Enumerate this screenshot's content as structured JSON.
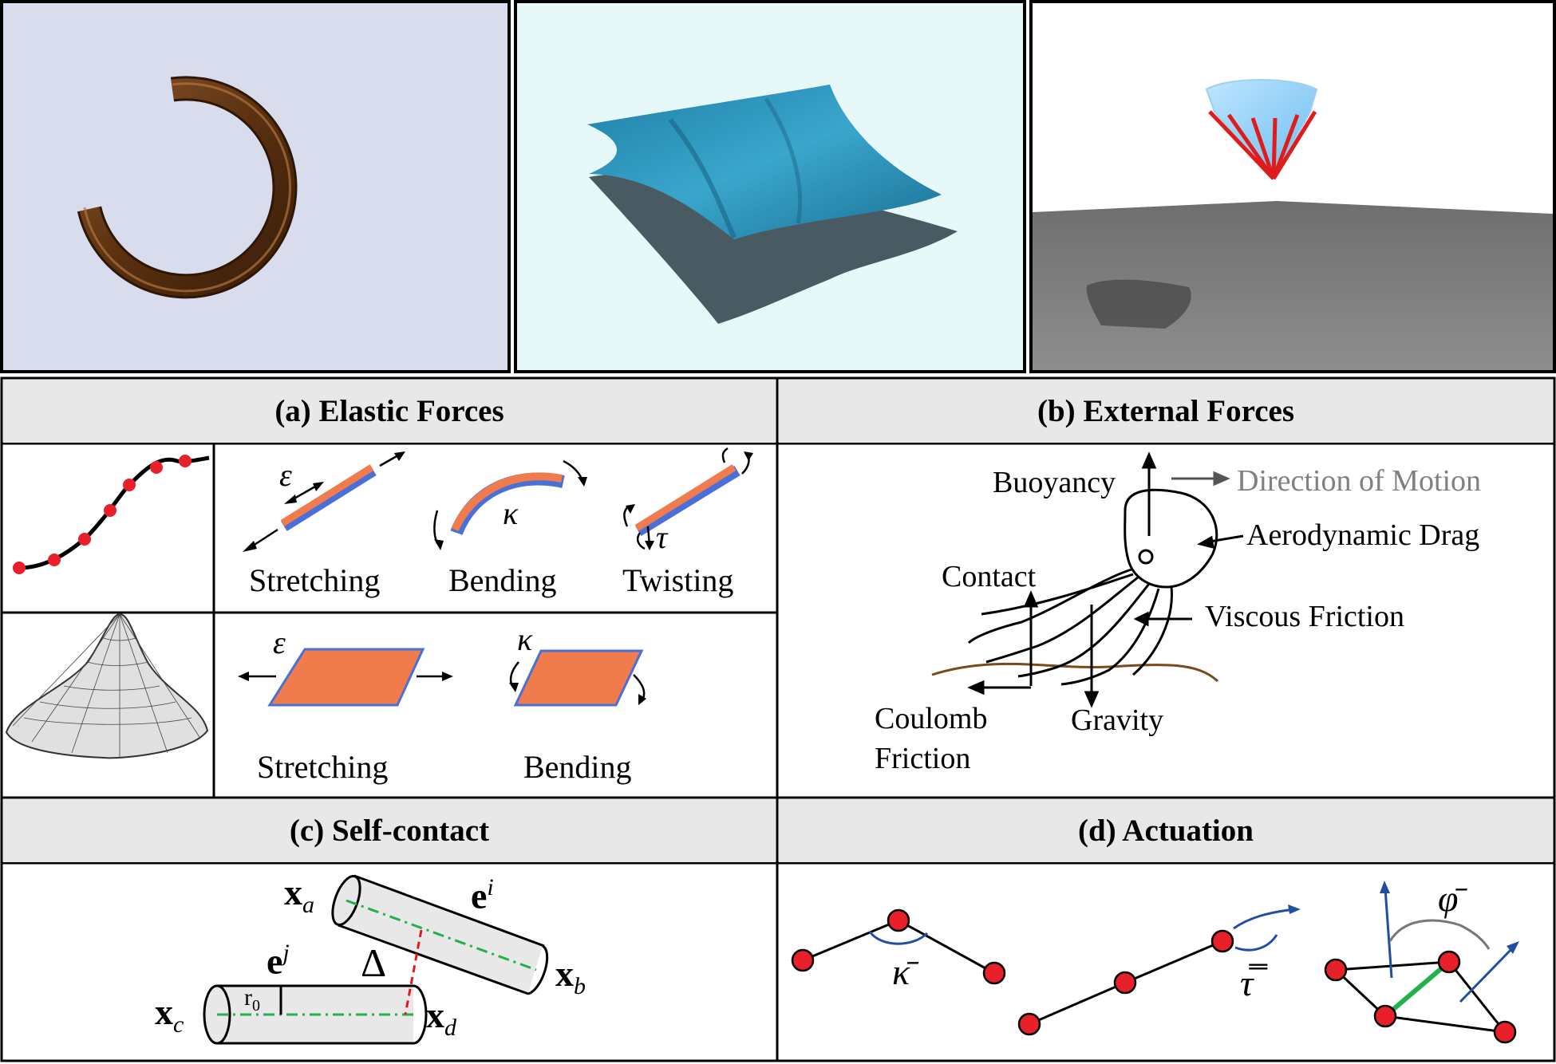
{
  "panel_a": {
    "title": "(a) Elastic Forces",
    "rod": {
      "stretch_symbol": "ε",
      "stretch_label": "Stretching",
      "bend_symbol": "κ",
      "bend_label": "Bending",
      "twist_symbol": "τ",
      "twist_label": "Twisting"
    },
    "shell": {
      "stretch_symbol": "ε",
      "stretch_label": "Stretching",
      "bend_symbol": "κ",
      "bend_label": "Bending"
    }
  },
  "panel_b": {
    "title": "(b) External Forces",
    "buoyancy": "Buoyancy",
    "direction": "Direction of Motion",
    "aero": "Aerodynamic Drag",
    "contact": "Contact",
    "viscous": "Viscous Friction",
    "coulomb_1": "Coulomb",
    "coulomb_2": "Friction",
    "gravity": "Gravity"
  },
  "panel_c": {
    "title": "(c) Self-contact",
    "xa": "x",
    "xa_sub": "a",
    "xb": "x",
    "xb_sub": "b",
    "xc": "x",
    "xc_sub": "c",
    "xd": "x",
    "xd_sub": "d",
    "ei": "e",
    "ei_sup": "i",
    "ej": "e",
    "ej_sup": "j",
    "delta": "Δ",
    "r0": "r",
    "r0_sub": "0"
  },
  "panel_d": {
    "title": "(d) Actuation",
    "kappa": "κ̄",
    "tau": "τ̿",
    "phi": "φ̄"
  },
  "colors": {
    "node_red": "#e8202a",
    "strip_orange": "#f07c4e",
    "strip_blue": "#4a6fd8",
    "header_gray": "#e8e8e8",
    "green": "#22b14c",
    "arrow_blue": "#1f4fa0",
    "ring_brown": "#6b3c14",
    "cloth_teal": "#2a93b8"
  }
}
